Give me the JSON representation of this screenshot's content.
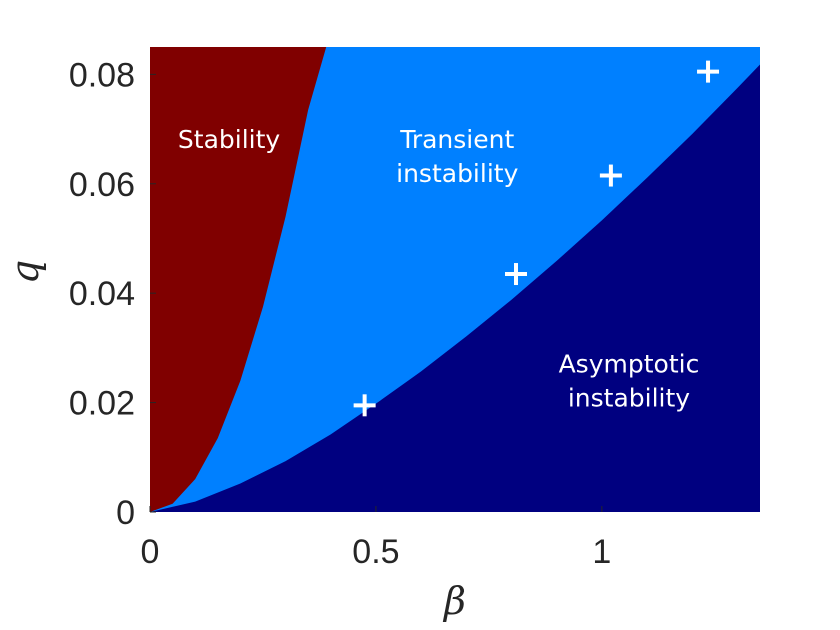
{
  "chart_data": {
    "type": "area",
    "title": "",
    "xlabel": "β",
    "ylabel": "q",
    "xlim": [
      0,
      1.35
    ],
    "ylim": [
      0,
      0.085
    ],
    "x_ticks": [
      {
        "value": 0,
        "label": "0"
      },
      {
        "value": 0.5,
        "label": "0.5"
      },
      {
        "value": 1,
        "label": "1"
      }
    ],
    "y_ticks": [
      {
        "value": 0,
        "label": "0"
      },
      {
        "value": 0.02,
        "label": "0.02"
      },
      {
        "value": 0.04,
        "label": "0.04"
      },
      {
        "value": 0.06,
        "label": "0.06"
      },
      {
        "value": 0.08,
        "label": "0.08"
      }
    ],
    "regions": [
      {
        "label": "Stability",
        "color": "#800000",
        "label_lines": [
          "Stability"
        ],
        "label_anchor": [
          0.175,
          0.0665
        ]
      },
      {
        "label": "Transient instability",
        "color": "#0080ff",
        "label_lines": [
          "Transient",
          "instability"
        ],
        "label_anchor": [
          0.68,
          0.0665
        ]
      },
      {
        "label": "Asymptotic instability",
        "color": "#000080",
        "label_lines": [
          "Asymptotic",
          "instability"
        ],
        "label_anchor": [
          1.06,
          0.0255
        ]
      }
    ],
    "boundaries": [
      {
        "name": "stability/transient",
        "x": [
          0,
          0.05,
          0.1,
          0.15,
          0.2,
          0.25,
          0.3,
          0.35,
          0.39
        ],
        "y": [
          0,
          0.0015,
          0.006,
          0.0135,
          0.024,
          0.0375,
          0.054,
          0.0735,
          0.085
        ]
      },
      {
        "name": "transient/asymptotic",
        "x": [
          0,
          0.1,
          0.2,
          0.3,
          0.4,
          0.5,
          0.6,
          0.7,
          0.8,
          0.9,
          1.0,
          1.1,
          1.2,
          1.3,
          1.35
        ],
        "y": [
          0,
          0.0019,
          0.0052,
          0.0093,
          0.0142,
          0.0198,
          0.0257,
          0.0321,
          0.0388,
          0.0459,
          0.0533,
          0.0611,
          0.0691,
          0.0775,
          0.0818
        ]
      }
    ],
    "markers": {
      "symbol": "+",
      "color": "#ffffff",
      "points": [
        {
          "x": 0.475,
          "y": 0.0195
        },
        {
          "x": 0.81,
          "y": 0.0435
        },
        {
          "x": 1.02,
          "y": 0.0615
        },
        {
          "x": 1.235,
          "y": 0.0805
        }
      ]
    }
  }
}
